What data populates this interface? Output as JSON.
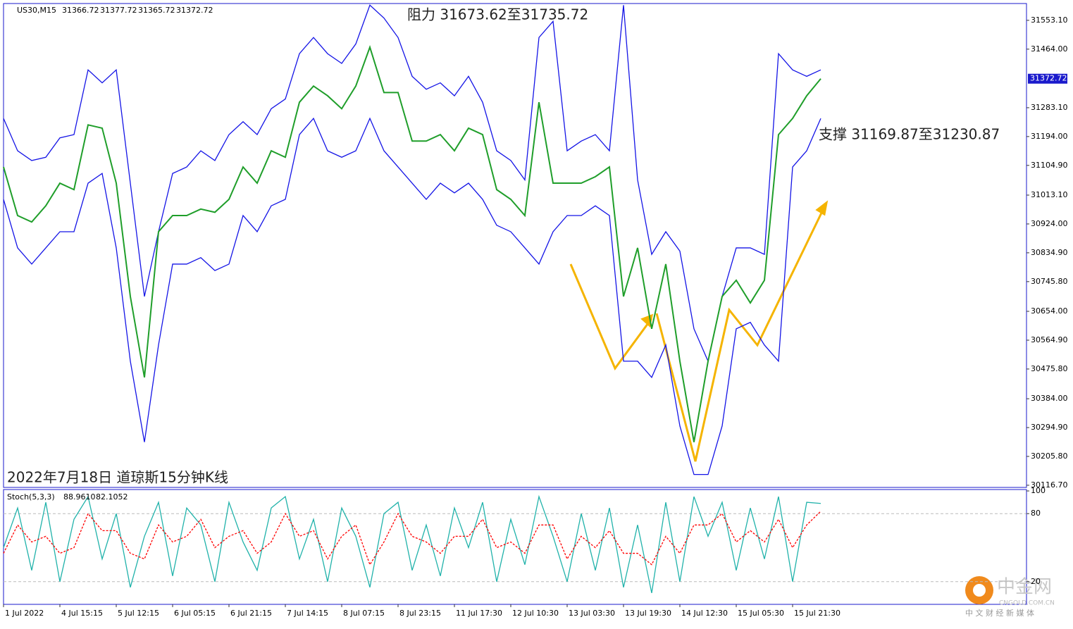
{
  "header": {
    "symbol": "US30,M15",
    "ohlc": [
      31366.72,
      31377.72,
      31365.72,
      31372.72
    ]
  },
  "annotations": {
    "resistance": "阻力 31673.62至31735.72",
    "support": "支撑 31169.87至31230.87",
    "caption": "2022年7月18日 道琼斯15分钟K线"
  },
  "watermark": {
    "name": "中金网",
    "domain": "CNGOLD.COM.CN",
    "slogan": "中 文 财 经 新 媒 体"
  },
  "chart_data": [
    {
      "type": "line",
      "last_price": 31372.72,
      "categories": [
        "1 Jul 2022",
        null,
        null,
        null,
        "4 Jul 15:15",
        null,
        null,
        null,
        "5 Jul 12:15",
        null,
        null,
        null,
        "6 Jul 05:15",
        null,
        null,
        null,
        "6 Jul 21:15",
        null,
        null,
        null,
        "7 Jul 14:15",
        null,
        null,
        null,
        "8 Jul 07:15",
        null,
        null,
        null,
        "8 Jul 23:15",
        null,
        null,
        null,
        "11 Jul 17:30",
        null,
        null,
        null,
        "12 Jul 10:30",
        null,
        null,
        null,
        "13 Jul 03:30",
        null,
        null,
        null,
        "13 Jul 19:30",
        null,
        null,
        null,
        "14 Jul 12:30",
        null,
        null,
        null,
        "15 Jul 05:30",
        null,
        null,
        null,
        "15 Jul 21:30",
        null,
        null
      ],
      "series": [
        {
          "name": "Upper",
          "color": "#1414e6",
          "values": [
            31250,
            31150,
            31120,
            31130,
            31190,
            31200,
            31400,
            31360,
            31400,
            31050,
            30700,
            30900,
            31080,
            31100,
            31150,
            31120,
            31200,
            31240,
            31200,
            31280,
            31310,
            31450,
            31500,
            31450,
            31420,
            31480,
            31600,
            31560,
            31500,
            31380,
            31340,
            31360,
            31320,
            31380,
            31300,
            31150,
            31120,
            31060,
            31500,
            31550,
            31150,
            31180,
            31200,
            31150,
            31600,
            31060,
            30830,
            30900,
            30840,
            30600,
            30500,
            30700,
            30850,
            30850,
            30830,
            31450,
            31400,
            31380,
            31400
          ]
        },
        {
          "name": "Lower",
          "color": "#1414e6",
          "values": [
            31000,
            30850,
            30800,
            30850,
            30900,
            30900,
            31050,
            31080,
            30850,
            30500,
            30250,
            30550,
            30800,
            30800,
            30820,
            30780,
            30800,
            30950,
            30900,
            30980,
            31000,
            31200,
            31250,
            31150,
            31130,
            31150,
            31250,
            31150,
            31100,
            31050,
            31000,
            31050,
            31020,
            31050,
            31000,
            30920,
            30900,
            30850,
            30800,
            30900,
            30950,
            30950,
            30980,
            30950,
            30500,
            30500,
            30450,
            30550,
            30300,
            30150,
            30150,
            30300,
            30600,
            30620,
            30550,
            30500,
            31100,
            31150,
            31250
          ]
        },
        {
          "name": "Close",
          "color": "#1f9e2a",
          "values": [
            31100,
            30950,
            30930,
            30980,
            31050,
            31030,
            31230,
            31220,
            31050,
            30700,
            30450,
            30900,
            30950,
            30950,
            30970,
            30960,
            31000,
            31100,
            31050,
            31150,
            31130,
            31300,
            31350,
            31320,
            31280,
            31350,
            31470,
            31330,
            31330,
            31180,
            31180,
            31200,
            31150,
            31220,
            31200,
            31030,
            31000,
            30950,
            31300,
            31050,
            31050,
            31050,
            31070,
            31100,
            30700,
            30850,
            30600,
            30800,
            30500,
            30250,
            30500,
            30700,
            30750,
            30680,
            30750,
            31200,
            31250,
            31320,
            31372.72
          ]
        }
      ],
      "ylim": [
        30110,
        31605
      ],
      "yticks": [
        {
          "value": 31553.1,
          "label": "31553.10"
        },
        {
          "value": 31464,
          "label": "31464.00"
        },
        {
          "value": 31283.1,
          "label": "31283.10"
        },
        {
          "value": 31194,
          "label": "31194.00"
        },
        {
          "value": 31104.9,
          "label": "31104.90"
        },
        {
          "value": 31013.1,
          "label": "31013.10"
        },
        {
          "value": 30924,
          "label": "30924.00"
        },
        {
          "value": 30834.9,
          "label": "30834.90"
        },
        {
          "value": 30745.8,
          "label": "30745.80"
        },
        {
          "value": 30654,
          "label": "30654.00"
        },
        {
          "value": 30564.9,
          "label": "30564.90"
        },
        {
          "value": 30475.8,
          "label": "30475.80"
        },
        {
          "value": 30384,
          "label": "30384.00"
        },
        {
          "value": 30294.9,
          "label": "30294.90"
        },
        {
          "value": 30205.8,
          "label": "30205.80"
        },
        {
          "value": 30116.7,
          "label": "30116.70"
        }
      ]
    },
    {
      "type": "line",
      "title": "Stoch(5,3,3)",
      "readout": [
        {
          "value": 88.961,
          "label": "88.9610"
        },
        {
          "value": 82.1052,
          "label": "82.1052"
        }
      ],
      "series": [
        {
          "name": "Main",
          "color": "#20b2aa",
          "values": [
            50,
            85,
            30,
            90,
            20,
            75,
            95,
            40,
            80,
            15,
            60,
            90,
            25,
            85,
            70,
            20,
            90,
            55,
            30,
            85,
            95,
            40,
            75,
            20,
            85,
            60,
            15,
            80,
            90,
            30,
            70,
            25,
            85,
            50,
            90,
            20,
            75,
            35,
            95,
            60,
            20,
            80,
            30,
            85,
            15,
            70,
            10,
            90,
            20,
            95,
            60,
            90,
            30,
            85,
            40,
            95,
            20,
            90,
            88.961
          ]
        },
        {
          "name": "Signal",
          "color": "#ff0000",
          "values": [
            45,
            70,
            55,
            60,
            45,
            50,
            80,
            65,
            65,
            45,
            40,
            70,
            55,
            60,
            75,
            50,
            60,
            65,
            45,
            55,
            80,
            60,
            65,
            40,
            60,
            70,
            35,
            55,
            80,
            60,
            55,
            45,
            60,
            60,
            75,
            50,
            55,
            45,
            70,
            70,
            40,
            60,
            50,
            65,
            45,
            45,
            35,
            60,
            45,
            70,
            70,
            80,
            55,
            65,
            55,
            75,
            50,
            70,
            82.1052
          ]
        }
      ],
      "ylim": [
        0,
        100
      ],
      "yticks": [
        100,
        80,
        20
      ],
      "levels": [
        80,
        20
      ]
    }
  ]
}
